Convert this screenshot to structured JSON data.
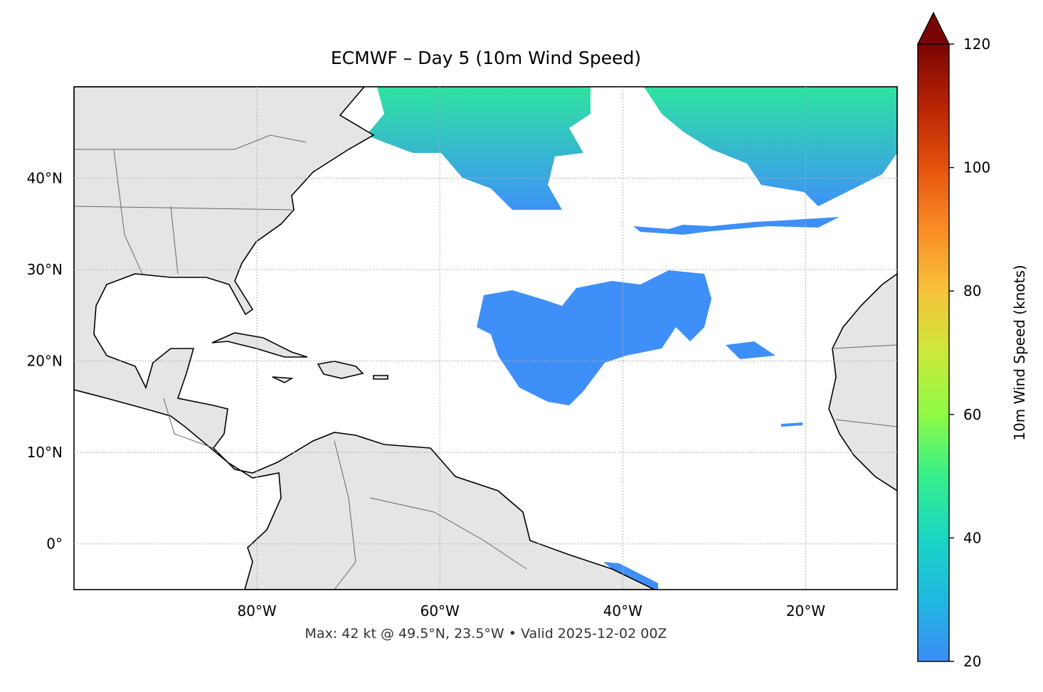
{
  "chart_data": {
    "type": "map",
    "title": "ECMWF – Day 5 (10m Wind Speed)",
    "caption": "Max: 42 kt @ 49.5°N, 23.5°W • Valid 2025-12-02 00Z",
    "xlim": [
      -100,
      -10
    ],
    "ylim": [
      -5,
      50
    ],
    "xticks": [
      {
        "value": -80,
        "label": "80°W"
      },
      {
        "value": -60,
        "label": "60°W"
      },
      {
        "value": -40,
        "label": "40°W"
      },
      {
        "value": -20,
        "label": "20°W"
      }
    ],
    "yticks": [
      {
        "value": 0,
        "label": "0°"
      },
      {
        "value": 10,
        "label": "10°N"
      },
      {
        "value": 20,
        "label": "20°N"
      },
      {
        "value": 30,
        "label": "30°N"
      },
      {
        "value": 40,
        "label": "40°N"
      }
    ],
    "grid": true,
    "colorbar": {
      "label": "10m Wind Speed (knots)",
      "lim": [
        20,
        120
      ],
      "ticks": [
        20,
        40,
        60,
        80,
        100,
        120
      ]
    }
  }
}
